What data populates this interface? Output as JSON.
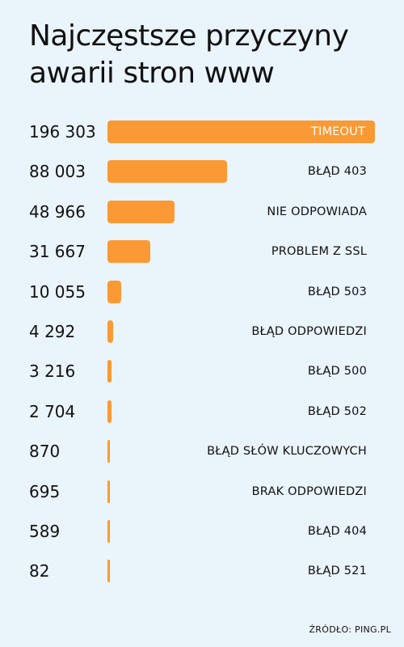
{
  "title": "Najczęstsze przyczyny awarii stron www",
  "source": "ŹRÓDŁO: PING.PL",
  "colors": {
    "background": "#eaf4fb",
    "bar": "#fb9a34",
    "text": "#111111"
  },
  "chart_data": {
    "type": "bar",
    "orientation": "horizontal",
    "title": "Najczęstsze przyczyny awarii stron www",
    "categories": [
      "TIMEOUT",
      "BŁĄD 403",
      "NIE ODPOWIADA",
      "PROBLEM Z SSL",
      "BŁĄD 503",
      "BŁĄD ODPOWIEDZI",
      "BŁĄD 500",
      "BŁĄD 502",
      "BŁĄD SŁÓW KLUCZOWYCH",
      "BRAK ODPOWIEDZI",
      "BŁĄD 404",
      "BŁĄD 521"
    ],
    "values": [
      196303,
      88003,
      48966,
      31667,
      10055,
      4292,
      3216,
      2704,
      870,
      695,
      589,
      82
    ],
    "value_labels": [
      "196 303",
      "88 003",
      "48 966",
      "31 667",
      "10 055",
      "4 292",
      "3 216",
      "2 704",
      "870",
      "695",
      "589",
      "82"
    ],
    "grid": false,
    "legend": "none"
  }
}
